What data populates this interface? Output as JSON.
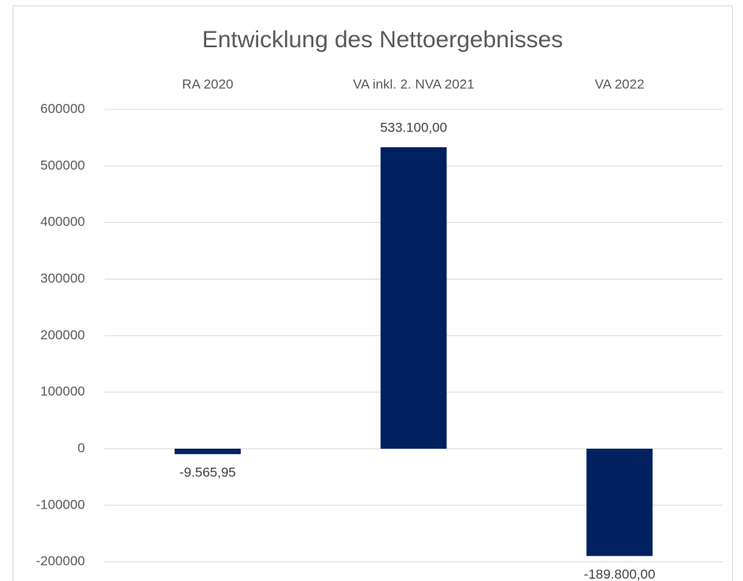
{
  "chart_data": {
    "type": "bar",
    "title": "Entwicklung des Nettoergebnisses",
    "categories": [
      "RA 2020",
      "VA inkl. 2. NVA 2021",
      "VA 2022"
    ],
    "values": [
      -9565.95,
      533100,
      -189800
    ],
    "value_labels": [
      "-9.565,95",
      "533.100,00",
      "-189.800,00"
    ],
    "color": "#002060",
    "ylim": [
      -200000,
      600000
    ],
    "yticks": [
      -200000,
      -100000,
      0,
      100000,
      200000,
      300000,
      400000,
      500000,
      600000
    ],
    "grid": true
  }
}
